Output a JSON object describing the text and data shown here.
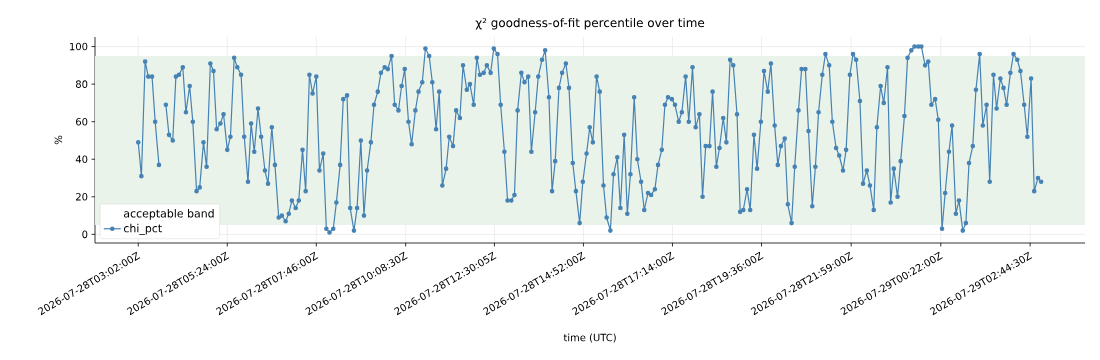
{
  "chart_data": {
    "type": "line",
    "title": "χ² goodness-of-fit percentile over time",
    "xlabel": "time (UTC)",
    "ylabel": "%",
    "xlim": [
      "2026-07-28T01:53",
      "2026-07-29T04:12"
    ],
    "ylim": [
      -4.6,
      105.1
    ],
    "xticks": [
      {
        "value": "2026-07-28T03:02:00",
        "label": "2026-07-28T03:02:00Z"
      },
      {
        "value": "2026-07-28T05:24:00",
        "label": "2026-07-28T05:24:00Z"
      },
      {
        "value": "2026-07-28T07:46:00",
        "label": "2026-07-28T07:46:00Z"
      },
      {
        "value": "2026-07-28T10:08:30",
        "label": "2026-07-28T10:08:30Z"
      },
      {
        "value": "2026-07-28T12:30:05",
        "label": "2026-07-28T12:30:05Z"
      },
      {
        "value": "2026-07-28T14:52:00",
        "label": "2026-07-28T14:52:00Z"
      },
      {
        "value": "2026-07-28T17:14:00",
        "label": "2026-07-28T17:14:00Z"
      },
      {
        "value": "2026-07-28T19:36:00",
        "label": "2026-07-28T19:36:00Z"
      },
      {
        "value": "2026-07-28T21:59:00",
        "label": "2026-07-28T21:59:00Z"
      },
      {
        "value": "2026-07-29T00:22:00",
        "label": "2026-07-29T00:22:00Z"
      },
      {
        "value": "2026-07-29T02:44:30",
        "label": "2026-07-29T02:44:30Z"
      }
    ],
    "yticks": [
      0,
      20,
      40,
      60,
      80,
      100
    ],
    "grid": true,
    "legend": "bottom left",
    "marker": "circle",
    "bands": [
      {
        "axis": "y",
        "from": 5,
        "to": 95,
        "label": "acceptable band",
        "color": "#e9f3e9"
      }
    ],
    "x": [
      "2026-07-28T03:02",
      "2026-07-28T03:07",
      "2026-07-28T03:13",
      "2026-07-28T03:18",
      "2026-07-28T03:24",
      "2026-07-28T03:29",
      "2026-07-28T03:35",
      "2026-07-28T03:40",
      "2026-07-28T03:46",
      "2026-07-28T03:51",
      "2026-07-28T03:57",
      "2026-07-28T04:02",
      "2026-07-28T04:07",
      "2026-07-28T04:13",
      "2026-07-28T04:18",
      "2026-07-28T04:24",
      "2026-07-28T04:29",
      "2026-07-28T04:35",
      "2026-07-28T04:40",
      "2026-07-28T04:46",
      "2026-07-28T04:51",
      "2026-07-28T04:57",
      "2026-07-28T05:02",
      "2026-07-28T05:07",
      "2026-07-28T05:13",
      "2026-07-28T05:18",
      "2026-07-28T05:24",
      "2026-07-28T05:29",
      "2026-07-28T05:35",
      "2026-07-28T05:40",
      "2026-07-28T05:46",
      "2026-07-28T05:51",
      "2026-07-28T05:57",
      "2026-07-28T06:02",
      "2026-07-28T06:07",
      "2026-07-28T06:13",
      "2026-07-28T06:18",
      "2026-07-28T06:24",
      "2026-07-28T06:29",
      "2026-07-28T06:35",
      "2026-07-28T06:40",
      "2026-07-28T06:46",
      "2026-07-28T06:51",
      "2026-07-28T06:57",
      "2026-07-28T07:02",
      "2026-07-28T07:07",
      "2026-07-28T07:13",
      "2026-07-28T07:18",
      "2026-07-28T07:24",
      "2026-07-28T07:29",
      "2026-07-28T07:35",
      "2026-07-28T07:40",
      "2026-07-28T07:46",
      "2026-07-28T07:51",
      "2026-07-28T07:57",
      "2026-07-28T08:02",
      "2026-07-28T08:07",
      "2026-07-28T08:13",
      "2026-07-28T08:18",
      "2026-07-28T08:24",
      "2026-07-28T08:29",
      "2026-07-28T08:35",
      "2026-07-28T08:40",
      "2026-07-28T08:46",
      "2026-07-28T08:51",
      "2026-07-28T08:57",
      "2026-07-28T09:02",
      "2026-07-28T09:07",
      "2026-07-28T09:13",
      "2026-07-28T09:18",
      "2026-07-28T09:24",
      "2026-07-28T09:29",
      "2026-07-28T09:35",
      "2026-07-28T09:40",
      "2026-07-28T09:46",
      "2026-07-28T09:51",
      "2026-07-28T09:57",
      "2026-07-28T10:02",
      "2026-07-28T10:07",
      "2026-07-28T10:13",
      "2026-07-28T10:18",
      "2026-07-28T10:24",
      "2026-07-28T10:29",
      "2026-07-28T10:35",
      "2026-07-28T10:40",
      "2026-07-28T10:46",
      "2026-07-28T10:51",
      "2026-07-28T10:57",
      "2026-07-28T11:02",
      "2026-07-28T11:07",
      "2026-07-28T11:13",
      "2026-07-28T11:18",
      "2026-07-28T11:24",
      "2026-07-28T11:29",
      "2026-07-28T11:35",
      "2026-07-28T11:40",
      "2026-07-28T11:46",
      "2026-07-28T11:51",
      "2026-07-28T11:57",
      "2026-07-28T12:02",
      "2026-07-28T12:07",
      "2026-07-28T12:13",
      "2026-07-28T12:18",
      "2026-07-28T12:24",
      "2026-07-28T12:29",
      "2026-07-28T12:35",
      "2026-07-28T12:40",
      "2026-07-28T12:46",
      "2026-07-28T12:51",
      "2026-07-28T12:57",
      "2026-07-28T13:02",
      "2026-07-28T13:07",
      "2026-07-28T13:13",
      "2026-07-28T13:18",
      "2026-07-28T13:24",
      "2026-07-28T13:29",
      "2026-07-28T13:35",
      "2026-07-28T13:40",
      "2026-07-28T13:46",
      "2026-07-28T13:51",
      "2026-07-28T13:57",
      "2026-07-28T14:02",
      "2026-07-28T14:07",
      "2026-07-28T14:13",
      "2026-07-28T14:18",
      "2026-07-28T14:24",
      "2026-07-28T14:29",
      "2026-07-28T14:35",
      "2026-07-28T14:40",
      "2026-07-28T14:46",
      "2026-07-28T14:51",
      "2026-07-28T14:57",
      "2026-07-28T15:02",
      "2026-07-28T15:07",
      "2026-07-28T15:13",
      "2026-07-28T15:18",
      "2026-07-28T15:24",
      "2026-07-28T15:29",
      "2026-07-28T15:35",
      "2026-07-28T15:40",
      "2026-07-28T15:46",
      "2026-07-28T15:51",
      "2026-07-28T15:57",
      "2026-07-28T16:02",
      "2026-07-28T16:07",
      "2026-07-28T16:13",
      "2026-07-28T16:18",
      "2026-07-28T16:24",
      "2026-07-28T16:29",
      "2026-07-28T16:35",
      "2026-07-28T16:40",
      "2026-07-28T16:46",
      "2026-07-28T16:51",
      "2026-07-28T16:57",
      "2026-07-28T17:02",
      "2026-07-28T17:07",
      "2026-07-28T17:13",
      "2026-07-28T17:18",
      "2026-07-28T17:24",
      "2026-07-28T17:29",
      "2026-07-28T17:35",
      "2026-07-28T17:40",
      "2026-07-28T17:46",
      "2026-07-28T17:51",
      "2026-07-28T17:57",
      "2026-07-28T18:02",
      "2026-07-28T18:07",
      "2026-07-28T18:13",
      "2026-07-28T18:18",
      "2026-07-28T18:24",
      "2026-07-28T18:29",
      "2026-07-28T18:35",
      "2026-07-28T18:40",
      "2026-07-28T18:46",
      "2026-07-28T18:51",
      "2026-07-28T18:57",
      "2026-07-28T19:02",
      "2026-07-28T19:07",
      "2026-07-28T19:13",
      "2026-07-28T19:18",
      "2026-07-28T19:24",
      "2026-07-28T19:29",
      "2026-07-28T19:35",
      "2026-07-28T19:40",
      "2026-07-28T19:46",
      "2026-07-28T19:51",
      "2026-07-28T19:57",
      "2026-07-28T20:02",
      "2026-07-28T20:07",
      "2026-07-28T20:13",
      "2026-07-28T20:18",
      "2026-07-28T20:24",
      "2026-07-28T20:29",
      "2026-07-28T20:35",
      "2026-07-28T20:40",
      "2026-07-28T20:46",
      "2026-07-28T20:51",
      "2026-07-28T20:57",
      "2026-07-28T21:02",
      "2026-07-28T21:07",
      "2026-07-28T21:13",
      "2026-07-28T21:18",
      "2026-07-28T21:24",
      "2026-07-28T21:29",
      "2026-07-28T21:35",
      "2026-07-28T21:40",
      "2026-07-28T21:46",
      "2026-07-28T21:51",
      "2026-07-28T21:57",
      "2026-07-28T22:02",
      "2026-07-28T22:07",
      "2026-07-28T22:13",
      "2026-07-28T22:18",
      "2026-07-28T22:24",
      "2026-07-28T22:29",
      "2026-07-28T22:35",
      "2026-07-28T22:40",
      "2026-07-28T22:46",
      "2026-07-28T22:51",
      "2026-07-28T22:57",
      "2026-07-28T23:02",
      "2026-07-28T23:07",
      "2026-07-28T23:13",
      "2026-07-28T23:18",
      "2026-07-28T23:24",
      "2026-07-28T23:29",
      "2026-07-28T23:35",
      "2026-07-28T23:40",
      "2026-07-28T23:46",
      "2026-07-28T23:51",
      "2026-07-28T23:57",
      "2026-07-29T00:02",
      "2026-07-29T00:07",
      "2026-07-29T00:13",
      "2026-07-29T00:18",
      "2026-07-29T00:24",
      "2026-07-29T00:29",
      "2026-07-29T00:35",
      "2026-07-29T00:40",
      "2026-07-29T00:46",
      "2026-07-29T00:51",
      "2026-07-29T00:57",
      "2026-07-29T01:02",
      "2026-07-29T01:07",
      "2026-07-29T01:13",
      "2026-07-29T01:18",
      "2026-07-29T01:24",
      "2026-07-29T01:29",
      "2026-07-29T01:35",
      "2026-07-29T01:40",
      "2026-07-29T01:46",
      "2026-07-29T01:51",
      "2026-07-29T01:57",
      "2026-07-29T02:02",
      "2026-07-29T02:07",
      "2026-07-29T02:13",
      "2026-07-29T02:18",
      "2026-07-29T02:24",
      "2026-07-29T02:29",
      "2026-07-29T02:35",
      "2026-07-29T02:40",
      "2026-07-29T02:46",
      "2026-07-29T02:51",
      "2026-07-29T02:57",
      "2026-07-29T03:02"
    ],
    "series": [
      {
        "name": "chi_pct",
        "color": "#4682b4",
        "values": [
          49,
          31,
          92,
          84,
          84,
          60,
          37,
          null,
          69,
          53,
          50,
          84,
          85,
          89,
          65,
          79,
          60,
          23,
          25,
          49,
          36,
          91,
          87,
          56,
          59,
          64,
          45,
          52,
          94,
          89,
          85,
          52,
          28,
          59,
          44,
          67,
          52,
          34,
          27,
          57,
          37,
          9,
          10,
          7,
          11,
          18,
          14,
          18,
          45,
          23,
          85,
          75,
          84,
          34,
          43,
          3,
          1,
          3,
          17,
          37,
          72,
          74,
          14,
          2,
          14,
          50,
          10,
          34,
          49,
          69,
          76,
          86,
          89,
          88,
          95,
          69,
          66,
          79,
          88,
          60,
          48,
          66,
          76,
          81,
          99,
          95,
          81,
          56,
          76,
          26,
          35,
          52,
          47,
          66,
          62,
          90,
          77,
          80,
          69,
          94,
          85,
          86,
          90,
          86,
          99,
          96,
          69,
          44,
          18,
          18,
          21,
          66,
          86,
          81,
          84,
          44,
          65,
          84,
          93,
          98,
          73,
          23,
          39,
          78,
          86,
          91,
          78,
          38,
          23,
          6,
          28,
          43,
          57,
          49,
          84,
          76,
          26,
          9,
          2,
          32,
          41,
          14,
          53,
          11,
          32,
          73,
          40,
          28,
          13,
          22,
          21,
          24,
          37,
          45,
          69,
          73,
          72,
          69,
          60,
          65,
          84,
          60,
          89,
          57,
          64,
          20,
          47,
          47,
          76,
          36,
          46,
          62,
          49,
          93,
          90,
          64,
          12,
          13,
          24,
          13,
          53,
          35,
          60,
          87,
          76,
          91,
          58,
          37,
          47,
          51,
          16,
          6,
          36,
          66,
          88,
          88,
          55,
          15,
          36,
          65,
          85,
          96,
          90,
          60,
          46,
          42,
          34,
          45,
          85,
          96,
          93,
          71,
          27,
          34,
          26,
          13,
          57,
          79,
          70,
          89,
          17,
          35,
          20,
          39,
          63,
          94,
          98,
          100,
          100,
          100,
          90,
          92,
          69,
          72,
          61,
          3,
          22,
          44,
          58,
          11,
          18,
          2,
          6,
          38,
          47,
          77,
          96,
          58,
          69,
          28,
          85,
          67,
          83,
          78,
          69,
          86,
          96,
          93,
          87,
          69,
          52,
          83,
          23,
          30,
          28
        ]
      }
    ]
  }
}
